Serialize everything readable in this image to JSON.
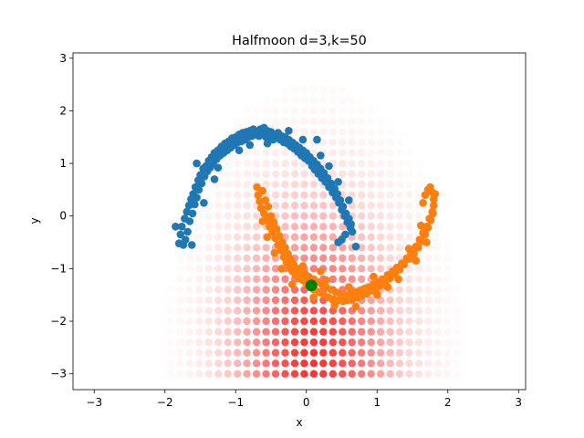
{
  "chart_data": {
    "type": "scatter",
    "title": "Halfmoon d=3,k=50",
    "xlabel": "x",
    "ylabel": "y",
    "xlim": [
      -3.3,
      3.1
    ],
    "ylim": [
      -3.3,
      3.1
    ],
    "xticks": [
      -3,
      -2,
      -1,
      0,
      1,
      2,
      3
    ],
    "yticks": [
      -3,
      -2,
      -1,
      0,
      1,
      2,
      3
    ],
    "grid": false,
    "colors": {
      "class0": "#1f77b4",
      "class1": "#ff7f0e",
      "density": "#ff0000",
      "query": "#008000"
    },
    "query_point": {
      "x": 0.07,
      "y": -1.32
    },
    "density_grid": {
      "x_start": -3.0,
      "x_step": 0.135,
      "x_count": 44,
      "y_start": -3.0,
      "y_step": 0.2,
      "y_count": 30,
      "peak_x": 0.1,
      "peak_y": -2.8,
      "spread_x": 0.75,
      "spread_y": 1.9
    },
    "series": [
      {
        "points": [
          [
            -1.8,
            -0.52
          ],
          [
            -1.78,
            -0.35
          ],
          [
            -1.76,
            -0.2
          ],
          [
            -1.74,
            -0.55
          ],
          [
            -1.72,
            -0.05
          ],
          [
            -1.71,
            -0.45
          ],
          [
            -1.69,
            0.08
          ],
          [
            -1.68,
            -0.3
          ],
          [
            -1.66,
            0.2
          ],
          [
            -1.65,
            -0.1
          ],
          [
            -1.63,
            0.32
          ],
          [
            -1.61,
            0.05
          ],
          [
            -1.6,
            0.42
          ],
          [
            -1.58,
            0.22
          ],
          [
            -1.57,
            0.55
          ],
          [
            -1.55,
            0.35
          ],
          [
            -1.53,
            0.68
          ],
          [
            -1.52,
            0.5
          ],
          [
            -1.5,
            0.78
          ],
          [
            -1.48,
            0.62
          ],
          [
            -1.46,
            0.9
          ],
          [
            -1.44,
            0.75
          ],
          [
            -1.42,
            0.95
          ],
          [
            -1.4,
            0.85
          ],
          [
            -1.38,
            1.05
          ],
          [
            -1.36,
            0.92
          ],
          [
            -1.34,
            1.12
          ],
          [
            -1.32,
            1.0
          ],
          [
            -1.3,
            1.2
          ],
          [
            -1.27,
            1.08
          ],
          [
            -1.25,
            1.25
          ],
          [
            -1.22,
            1.15
          ],
          [
            -1.2,
            1.32
          ],
          [
            -1.17,
            1.2
          ],
          [
            -1.15,
            1.38
          ],
          [
            -1.12,
            1.25
          ],
          [
            -1.1,
            1.42
          ],
          [
            -1.07,
            1.3
          ],
          [
            -1.05,
            1.48
          ],
          [
            -1.02,
            1.35
          ],
          [
            -1.0,
            1.5
          ],
          [
            -0.97,
            1.4
          ],
          [
            -0.95,
            1.55
          ],
          [
            -0.92,
            1.42
          ],
          [
            -0.9,
            1.58
          ],
          [
            -0.87,
            1.45
          ],
          [
            -0.85,
            1.6
          ],
          [
            -0.82,
            1.5
          ],
          [
            -0.8,
            1.62
          ],
          [
            -0.77,
            1.52
          ],
          [
            -0.75,
            1.65
          ],
          [
            -0.72,
            1.55
          ],
          [
            -0.7,
            1.6
          ],
          [
            -0.67,
            1.52
          ],
          [
            -0.65,
            1.65
          ],
          [
            -0.62,
            1.55
          ],
          [
            -0.6,
            1.68
          ],
          [
            -0.57,
            1.5
          ],
          [
            -0.55,
            1.62
          ],
          [
            -0.52,
            1.48
          ],
          [
            -0.5,
            1.6
          ],
          [
            -0.47,
            1.45
          ],
          [
            -0.45,
            1.55
          ],
          [
            -0.42,
            1.5
          ],
          [
            -0.4,
            1.58
          ],
          [
            -0.37,
            1.45
          ],
          [
            -0.35,
            1.52
          ],
          [
            -0.32,
            1.4
          ],
          [
            -0.3,
            1.5
          ],
          [
            -0.27,
            1.38
          ],
          [
            -0.25,
            1.45
          ],
          [
            -0.22,
            1.32
          ],
          [
            -0.2,
            1.4
          ],
          [
            -0.17,
            1.28
          ],
          [
            -0.15,
            1.35
          ],
          [
            -0.12,
            1.22
          ],
          [
            -0.1,
            1.3
          ],
          [
            -0.07,
            1.15
          ],
          [
            -0.05,
            1.25
          ],
          [
            -0.02,
            1.1
          ],
          [
            0.0,
            1.2
          ],
          [
            0.03,
            1.05
          ],
          [
            0.05,
            1.12
          ],
          [
            0.08,
            0.95
          ],
          [
            0.1,
            1.05
          ],
          [
            0.12,
            0.88
          ],
          [
            0.15,
            0.98
          ],
          [
            0.17,
            0.8
          ],
          [
            0.2,
            0.9
          ],
          [
            0.22,
            0.72
          ],
          [
            0.25,
            0.82
          ],
          [
            0.27,
            0.65
          ],
          [
            0.3,
            0.72
          ],
          [
            0.32,
            0.55
          ],
          [
            0.35,
            0.62
          ],
          [
            0.37,
            0.45
          ],
          [
            0.4,
            0.52
          ],
          [
            0.42,
            0.35
          ],
          [
            0.44,
            0.42
          ],
          [
            0.46,
            0.25
          ],
          [
            0.48,
            0.3
          ],
          [
            0.5,
            0.12
          ],
          [
            0.52,
            0.18
          ],
          [
            0.54,
            0.0
          ],
          [
            0.56,
            0.05
          ],
          [
            0.58,
            -0.12
          ],
          [
            0.6,
            -0.05
          ],
          [
            0.62,
            -0.22
          ],
          [
            0.63,
            -0.15
          ],
          [
            0.65,
            -0.3
          ],
          [
            0.5,
            -0.45
          ],
          [
            0.55,
            -0.35
          ],
          [
            0.45,
            -0.5
          ],
          [
            0.7,
            -0.58
          ],
          [
            0.15,
            1.45
          ],
          [
            -0.25,
            1.62
          ],
          [
            -1.45,
            0.25
          ],
          [
            -1.85,
            -0.2
          ],
          [
            -1.55,
            1.0
          ],
          [
            -0.95,
            1.25
          ],
          [
            -1.25,
            0.92
          ],
          [
            -0.55,
            1.38
          ],
          [
            0.32,
            0.95
          ],
          [
            -1.62,
            -0.55
          ],
          [
            -0.05,
            1.45
          ],
          [
            0.6,
            0.3
          ],
          [
            0.45,
            0.65
          ],
          [
            -1.3,
            0.7
          ],
          [
            -0.8,
            1.35
          ],
          [
            0.2,
            1.15
          ]
        ]
      },
      {
        "points": [
          [
            -0.7,
            0.55
          ],
          [
            -0.68,
            0.4
          ],
          [
            -0.66,
            0.28
          ],
          [
            -0.64,
            0.15
          ],
          [
            -0.62,
            0.48
          ],
          [
            -0.6,
            0.05
          ],
          [
            -0.58,
            0.3
          ],
          [
            -0.56,
            -0.08
          ],
          [
            -0.54,
            0.18
          ],
          [
            -0.52,
            -0.2
          ],
          [
            -0.5,
            0.0
          ],
          [
            -0.48,
            -0.3
          ],
          [
            -0.46,
            -0.12
          ],
          [
            -0.44,
            -0.42
          ],
          [
            -0.42,
            -0.25
          ],
          [
            -0.4,
            -0.55
          ],
          [
            -0.38,
            -0.38
          ],
          [
            -0.36,
            -0.65
          ],
          [
            -0.34,
            -0.5
          ],
          [
            -0.32,
            -0.78
          ],
          [
            -0.3,
            -0.6
          ],
          [
            -0.28,
            -0.88
          ],
          [
            -0.26,
            -0.72
          ],
          [
            -0.24,
            -0.98
          ],
          [
            -0.22,
            -0.82
          ],
          [
            -0.2,
            -1.05
          ],
          [
            -0.18,
            -0.92
          ],
          [
            -0.15,
            -1.12
          ],
          [
            -0.12,
            -1.0
          ],
          [
            -0.1,
            -1.18
          ],
          [
            -0.08,
            -1.05
          ],
          [
            -0.05,
            -1.22
          ],
          [
            -0.02,
            -1.1
          ],
          [
            0.0,
            -1.28
          ],
          [
            0.03,
            -1.15
          ],
          [
            0.06,
            -1.35
          ],
          [
            0.09,
            -1.2
          ],
          [
            0.12,
            -1.4
          ],
          [
            0.15,
            -1.25
          ],
          [
            0.18,
            -1.45
          ],
          [
            0.22,
            -1.3
          ],
          [
            0.25,
            -1.5
          ],
          [
            0.28,
            -1.35
          ],
          [
            0.32,
            -1.55
          ],
          [
            0.35,
            -1.4
          ],
          [
            0.38,
            -1.58
          ],
          [
            0.42,
            -1.45
          ],
          [
            0.45,
            -1.6
          ],
          [
            0.48,
            -1.48
          ],
          [
            0.52,
            -1.62
          ],
          [
            0.55,
            -1.5
          ],
          [
            0.58,
            -1.6
          ],
          [
            0.62,
            -1.48
          ],
          [
            0.65,
            -1.58
          ],
          [
            0.68,
            -1.45
          ],
          [
            0.72,
            -1.55
          ],
          [
            0.75,
            -1.42
          ],
          [
            0.78,
            -1.52
          ],
          [
            0.82,
            -1.38
          ],
          [
            0.85,
            -1.48
          ],
          [
            0.88,
            -1.35
          ],
          [
            0.92,
            -1.42
          ],
          [
            0.95,
            -1.3
          ],
          [
            0.98,
            -1.38
          ],
          [
            1.02,
            -1.25
          ],
          [
            1.05,
            -1.32
          ],
          [
            1.08,
            -1.2
          ],
          [
            1.12,
            -1.25
          ],
          [
            1.15,
            -1.12
          ],
          [
            1.18,
            -1.18
          ],
          [
            1.22,
            -1.05
          ],
          [
            1.25,
            -1.1
          ],
          [
            1.28,
            -0.98
          ],
          [
            1.32,
            -1.02
          ],
          [
            1.35,
            -0.9
          ],
          [
            1.38,
            -0.92
          ],
          [
            1.42,
            -0.8
          ],
          [
            1.45,
            -0.82
          ],
          [
            1.48,
            -0.7
          ],
          [
            1.52,
            -0.72
          ],
          [
            1.55,
            -0.58
          ],
          [
            1.58,
            -0.6
          ],
          [
            1.6,
            -0.45
          ],
          [
            1.63,
            -0.48
          ],
          [
            1.65,
            -0.32
          ],
          [
            1.68,
            -0.35
          ],
          [
            1.7,
            -0.2
          ],
          [
            1.72,
            -0.22
          ],
          [
            1.74,
            -0.05
          ],
          [
            1.76,
            -0.08
          ],
          [
            1.78,
            0.08
          ],
          [
            1.79,
            0.05
          ],
          [
            1.8,
            0.2
          ],
          [
            1.8,
            0.32
          ],
          [
            1.78,
            0.45
          ],
          [
            1.82,
            0.42
          ],
          [
            1.75,
            0.55
          ],
          [
            1.72,
            0.5
          ],
          [
            1.68,
            0.4
          ],
          [
            1.65,
            0.25
          ],
          [
            -0.35,
            -1.0
          ],
          [
            -0.2,
            -1.3
          ],
          [
            0.1,
            -1.55
          ],
          [
            0.4,
            -1.7
          ],
          [
            0.7,
            -1.72
          ],
          [
            1.0,
            -1.5
          ],
          [
            1.3,
            -1.2
          ],
          [
            1.55,
            -0.85
          ],
          [
            1.7,
            -0.5
          ],
          [
            -0.55,
            -0.4
          ],
          [
            -0.05,
            -0.95
          ],
          [
            0.28,
            -1.22
          ],
          [
            0.95,
            -1.15
          ],
          [
            1.45,
            -0.62
          ],
          [
            -0.45,
            -0.7
          ],
          [
            0.6,
            -1.35
          ],
          [
            1.15,
            -1.35
          ],
          [
            1.62,
            -0.18
          ],
          [
            -0.62,
            -0.1
          ],
          [
            0.2,
            -1.05
          ]
        ]
      }
    ]
  }
}
